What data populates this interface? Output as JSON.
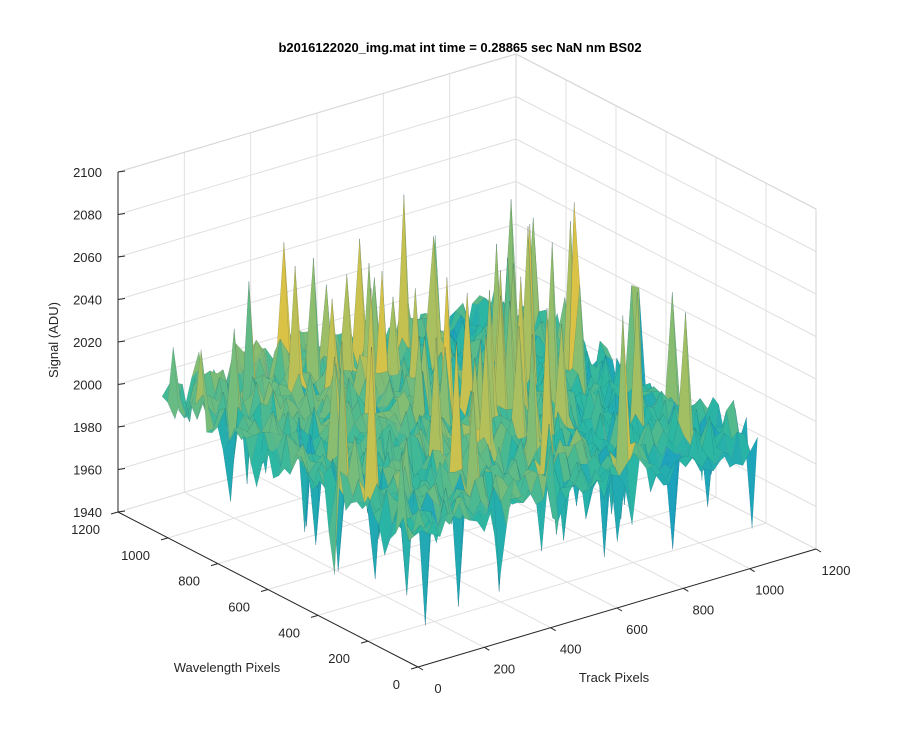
{
  "chart_data": {
    "type": "surface3d",
    "title": "b2016122020_img.mat int time = 0.28865 sec  NaN nm BS02",
    "xlabel": "Track Pixels",
    "ylabel": "Wavelength Pixels",
    "zlabel": "Signal (ADU)",
    "xlim": [
      0,
      1200
    ],
    "ylim": [
      0,
      1200
    ],
    "zlim": [
      1940,
      2100
    ],
    "xticks": [
      "0",
      "200",
      "400",
      "600",
      "800",
      "1000",
      "1200"
    ],
    "yticks": [
      "0",
      "200",
      "400",
      "600",
      "800",
      "1000",
      "1200"
    ],
    "zticks": [
      "1940",
      "1960",
      "1980",
      "2000",
      "2020",
      "2040",
      "2060",
      "2080",
      "2100"
    ],
    "surface": {
      "x_extent": [
        0,
        1024
      ],
      "y_extent": [
        0,
        1024
      ],
      "mean_signal": 2003,
      "noise_range": [
        1950,
        2090
      ],
      "colormap": "parula",
      "grid": true
    },
    "colors": {
      "low": "#0f8fd5",
      "mid": "#2bb7a2",
      "high": "#d9c246",
      "axis": "#262626",
      "grid": "#e0e0e0"
    }
  }
}
